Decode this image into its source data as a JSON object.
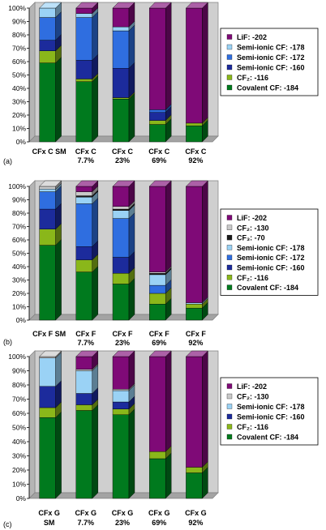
{
  "colors": {
    "Covalent CF: -184": "#007a1e",
    "CF2: -116": "#8ab71a",
    "Semi-ionic CF: -160": "#1c2b9c",
    "Semi-ionic CF: -172": "#2f6ee0",
    "Semi-ionic CF: -178": "#9ad2f5",
    "CF3: -70": "#1a1a1a",
    "CF2: -130": "#c9c9c9",
    "LiF: -202": "#7f0a77"
  },
  "chart_data": [
    {
      "type": "bar",
      "stacked": true,
      "panel_label": "(a)",
      "y_ticks": [
        "0%",
        "10%",
        "20%",
        "30%",
        "40%",
        "50%",
        "60%",
        "70%",
        "80%",
        "90%",
        "100%"
      ],
      "ylim": [
        0,
        100
      ],
      "grid": false,
      "legend_position": "right",
      "categories": [
        [
          "CFx C SM"
        ],
        [
          "CFx C",
          "7.7%"
        ],
        [
          "CFx C",
          "23%"
        ],
        [
          "CFx C",
          "69%"
        ],
        [
          "CFx C",
          "92%"
        ]
      ],
      "legend": [
        {
          "key": "LiF: -202",
          "text": "LiF: -202"
        },
        {
          "key": "Semi-ionic CF: -178",
          "text": "Semi-ionic CF: -178"
        },
        {
          "key": "Semi-ionic CF: -172",
          "text": "Semi-ionic CF: -172"
        },
        {
          "key": "Semi-ionic CF: -160",
          "text": "Semi-ionic CF: -160"
        },
        {
          "key": "CF2: -116",
          "text": "CF₂: -116"
        },
        {
          "key": "Covalent CF: -184",
          "text": "Covalent CF: -184"
        }
      ],
      "series": [
        {
          "key": "Covalent CF: -184",
          "values": [
            59,
            45,
            32,
            13,
            12
          ]
        },
        {
          "key": "CF2: -116",
          "values": [
            9,
            2,
            1,
            3,
            2
          ]
        },
        {
          "key": "Semi-ionic CF: -160",
          "values": [
            8,
            14,
            22,
            6,
            0
          ]
        },
        {
          "key": "Semi-ionic CF: -172",
          "values": [
            17,
            32,
            28,
            2,
            0
          ]
        },
        {
          "key": "Semi-ionic CF: -178",
          "values": [
            7,
            3,
            3,
            0,
            0
          ]
        },
        {
          "key": "LiF: -202",
          "values": [
            0,
            4,
            14,
            76,
            86
          ]
        }
      ]
    },
    {
      "type": "bar",
      "stacked": true,
      "panel_label": "(b)",
      "y_ticks": [
        "0%",
        "10%",
        "20%",
        "30%",
        "40%",
        "50%",
        "60%",
        "70%",
        "80%",
        "90%",
        "100%"
      ],
      "ylim": [
        0,
        100
      ],
      "grid": false,
      "legend_position": "right",
      "categories": [
        [
          "CFx F SM"
        ],
        [
          "CFx F",
          "7.7%"
        ],
        [
          "CFx F",
          "23%"
        ],
        [
          "CFx F",
          "69%"
        ],
        [
          "CFx F",
          "92%"
        ]
      ],
      "legend": [
        {
          "key": "LiF: -202",
          "text": "LiF: -202"
        },
        {
          "key": "CF2: -130",
          "text": "CF₂: -130"
        },
        {
          "key": "CF3: -70",
          "text": "CF₃: -70"
        },
        {
          "key": "Semi-ionic CF: -178",
          "text": "Semi-ionic CF: -178"
        },
        {
          "key": "Semi-ionic CF: -172",
          "text": "Semi-ionic CF: -172"
        },
        {
          "key": "Semi-ionic CF: -160",
          "text": "Semi-ionic CF: -160"
        },
        {
          "key": "CF2: -116",
          "text": "CF₂: -116"
        },
        {
          "key": "Covalent CF: -184",
          "text": "Covalent CF: -184"
        }
      ],
      "series": [
        {
          "key": "Covalent CF: -184",
          "values": [
            56,
            36,
            27,
            12,
            9
          ]
        },
        {
          "key": "CF2: -116",
          "values": [
            12,
            9,
            8,
            8,
            3
          ]
        },
        {
          "key": "Semi-ionic CF: -160",
          "values": [
            15,
            10,
            12,
            0,
            0
          ]
        },
        {
          "key": "Semi-ionic CF: -172",
          "values": [
            13,
            32,
            29,
            6,
            0
          ]
        },
        {
          "key": "Semi-ionic CF: -178",
          "values": [
            2,
            5,
            6,
            8,
            1
          ]
        },
        {
          "key": "CF3: -70",
          "values": [
            0,
            1,
            1,
            1,
            0
          ]
        },
        {
          "key": "CF2: -130",
          "values": [
            2,
            3,
            2,
            1,
            0
          ]
        },
        {
          "key": "LiF: -202",
          "values": [
            0,
            4,
            15,
            64,
            87
          ]
        }
      ]
    },
    {
      "type": "bar",
      "stacked": true,
      "panel_label": "(c)",
      "y_ticks": [
        "0%",
        "10%",
        "20%",
        "30%",
        "40%",
        "50%",
        "60%",
        "70%",
        "80%",
        "90%",
        "100%"
      ],
      "ylim": [
        0,
        100
      ],
      "grid": false,
      "legend_position": "right",
      "categories": [
        [
          "CFx G",
          "SM"
        ],
        [
          "CFx G",
          "7.7%"
        ],
        [
          "CFx G",
          "23%"
        ],
        [
          "CFx G",
          "69%"
        ],
        [
          "CFx G",
          "92%"
        ]
      ],
      "legend": [
        {
          "key": "LiF: -202",
          "text": "LiF: -202"
        },
        {
          "key": "CF2: -130",
          "text": "CF₂: -130"
        },
        {
          "key": "Semi-ionic CF: -178",
          "text": "Semi-ionic CF: -178"
        },
        {
          "key": "Semi-ionic CF: -160",
          "text": "Semi-ionic CF: -160"
        },
        {
          "key": "CF2: -116",
          "text": "CF₂: -116"
        },
        {
          "key": "Covalent CF: -184",
          "text": "Covalent CF: -184"
        }
      ],
      "series": [
        {
          "key": "Covalent CF: -184",
          "values": [
            57,
            62,
            59,
            28,
            18
          ]
        },
        {
          "key": "CF2: -116",
          "values": [
            7,
            4,
            4,
            5,
            4
          ]
        },
        {
          "key": "Semi-ionic CF: -160",
          "values": [
            15,
            8,
            5,
            0,
            0
          ]
        },
        {
          "key": "Semi-ionic CF: -178",
          "values": [
            20,
            16,
            8,
            0,
            0
          ]
        },
        {
          "key": "CF2: -130",
          "values": [
            1,
            1,
            1,
            0,
            0
          ]
        },
        {
          "key": "LiF: -202",
          "values": [
            0,
            9,
            23,
            67,
            78
          ]
        }
      ]
    }
  ]
}
